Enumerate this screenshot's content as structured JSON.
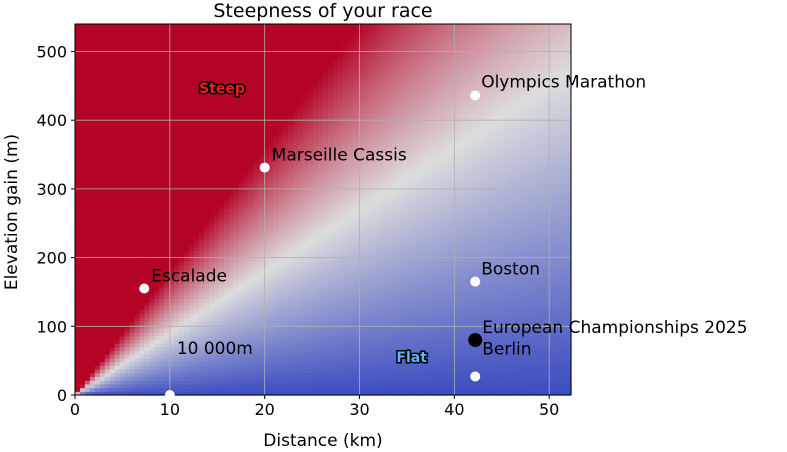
{
  "chart_data": {
    "type": "heatmap",
    "title": "Steepness of your race",
    "xlabel": "Distance (km)",
    "ylabel": "Elevation gain (m)",
    "xlim": [
      0,
      52.3
    ],
    "ylim": [
      0,
      540
    ],
    "xticks": [
      0,
      10,
      20,
      30,
      40,
      50
    ],
    "yticks": [
      0,
      100,
      200,
      300,
      400,
      500
    ],
    "grid": true,
    "colormap": {
      "name": "coolwarm",
      "low_color": "#3b4cc0",
      "mid_color": "#dddddd",
      "high_color": "#b40426",
      "saturation_ratio_m_per_km": 18
    },
    "zone_labels": [
      {
        "text": "Steep",
        "x": 15.5,
        "y": 447,
        "fill": "#e8201b",
        "outline": "#000000"
      },
      {
        "text": "Flat",
        "x": 35.5,
        "y": 55,
        "fill": "#5fb4ff",
        "outline": "#000000"
      }
    ],
    "points": [
      {
        "label": "Olympics Marathon",
        "x": 42.2,
        "y": 436,
        "color": "#ffffff"
      },
      {
        "label": "Marseille Cassis",
        "x": 20,
        "y": 331,
        "color": "#ffffff"
      },
      {
        "label": "Escalade",
        "x": 7.3,
        "y": 155,
        "color": "#ffffff"
      },
      {
        "label": "Boston",
        "x": 42.2,
        "y": 165,
        "color": "#ffffff"
      },
      {
        "label": "European Championships 2025",
        "x": 42.2,
        "y": 80,
        "color": "#000000"
      },
      {
        "label": "Berlin",
        "x": 42.2,
        "y": 27,
        "color": "#ffffff"
      },
      {
        "label": "10 000m",
        "x": 10,
        "y": 0,
        "color": "#ffffff"
      }
    ]
  }
}
